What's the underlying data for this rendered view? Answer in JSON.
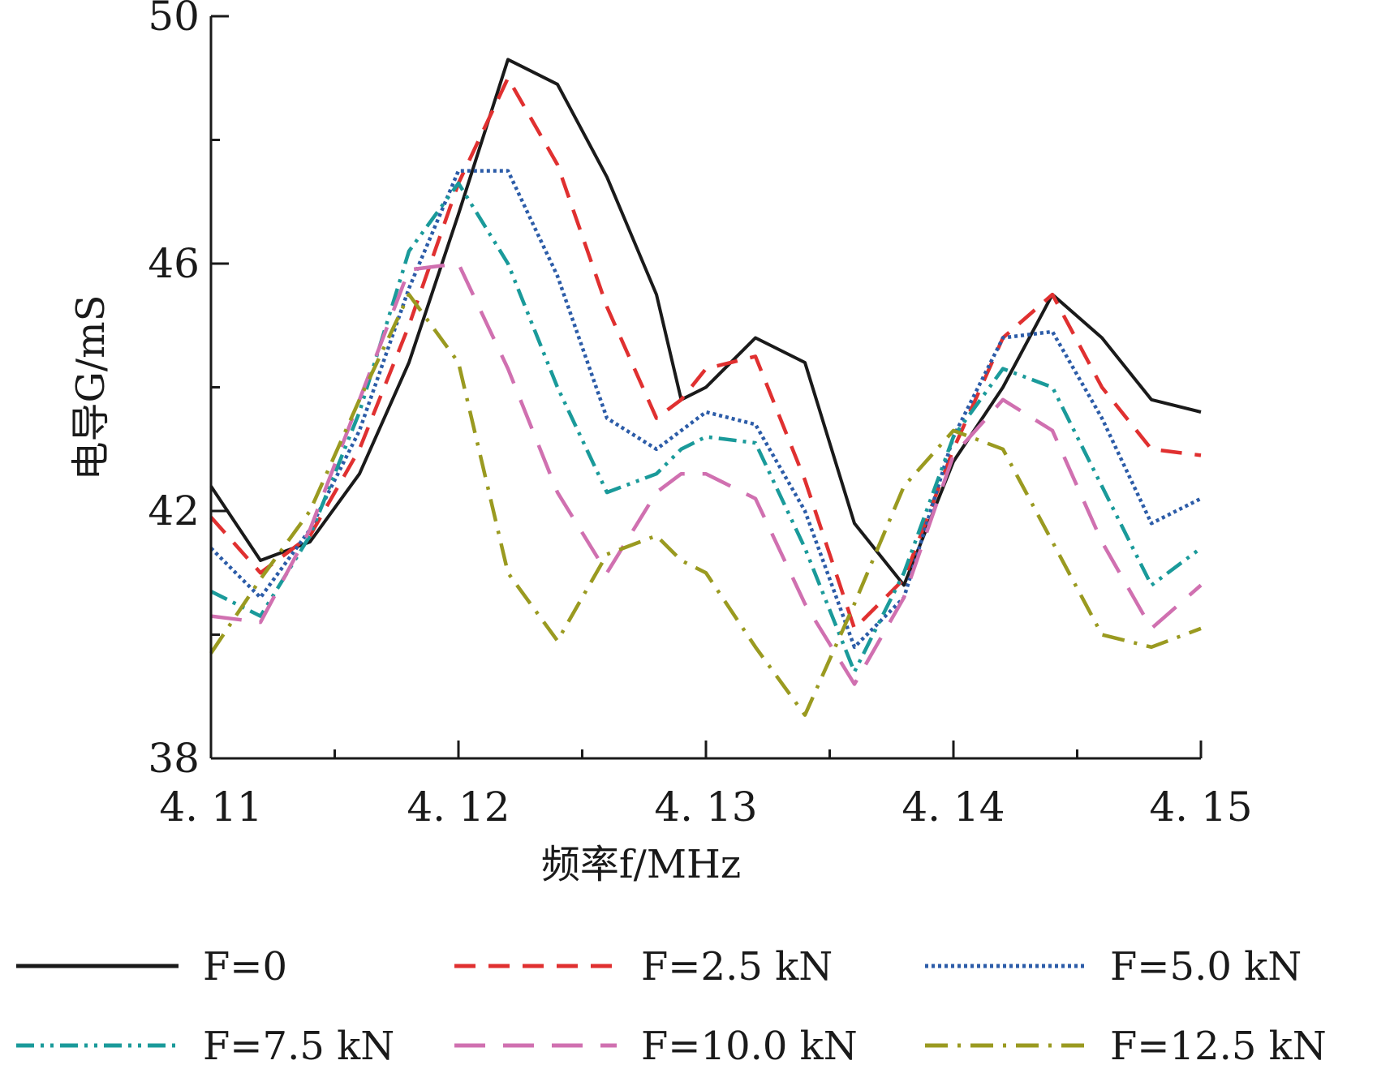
{
  "chart_data": {
    "type": "line",
    "xlabel": "频率f/MHz",
    "ylabel": "电导G/mS",
    "xlim": [
      4.11,
      4.15
    ],
    "ylim": [
      38,
      50
    ],
    "x_ticks": [
      4.11,
      4.12,
      4.13,
      4.14,
      4.15
    ],
    "x_tick_labels": [
      "4. 11",
      "4. 12",
      "4. 13",
      "4. 14",
      "4. 15"
    ],
    "y_ticks": [
      38,
      42,
      46,
      50
    ],
    "y_tick_labels": [
      "38",
      "42",
      "46",
      "50"
    ],
    "legend_position": "bottom",
    "x": [
      4.11,
      4.112,
      4.114,
      4.116,
      4.118,
      4.12,
      4.122,
      4.124,
      4.126,
      4.128,
      4.129,
      4.13,
      4.132,
      4.134,
      4.136,
      4.138,
      4.14,
      4.142,
      4.144,
      4.146,
      4.148,
      4.15
    ],
    "series": [
      {
        "name": "F=0",
        "color": "#1a1a1a",
        "dash": "solid",
        "values": [
          42.4,
          41.2,
          41.5,
          42.6,
          44.4,
          46.8,
          49.3,
          48.9,
          47.4,
          45.5,
          43.8,
          44.0,
          44.8,
          44.4,
          41.8,
          40.8,
          42.8,
          44.0,
          45.5,
          44.8,
          43.8,
          43.6
        ]
      },
      {
        "name": "F=2.5 kN",
        "color": "#e03030",
        "dash": "dashed",
        "values": [
          41.9,
          41.0,
          41.6,
          43.0,
          45.0,
          47.3,
          49.0,
          47.6,
          45.3,
          43.5,
          43.8,
          44.3,
          44.5,
          42.5,
          40.1,
          40.9,
          43.0,
          44.8,
          45.5,
          44.0,
          43.0,
          42.9
        ]
      },
      {
        "name": "F=5.0 kN",
        "color": "#2c5ca8",
        "dash": "dotted",
        "values": [
          41.4,
          40.6,
          41.7,
          43.3,
          45.6,
          47.5,
          47.5,
          45.8,
          43.5,
          43.0,
          43.3,
          43.6,
          43.4,
          42.0,
          39.8,
          40.6,
          43.2,
          44.8,
          44.9,
          43.5,
          41.8,
          42.2
        ]
      },
      {
        "name": "F=7.5 kN",
        "color": "#1a9a9a",
        "dash": "dashdotdot",
        "values": [
          40.7,
          40.3,
          41.6,
          43.6,
          46.2,
          47.3,
          46.0,
          44.0,
          42.3,
          42.6,
          43.0,
          43.2,
          43.1,
          41.4,
          39.4,
          41.0,
          43.2,
          44.3,
          44.0,
          42.4,
          40.8,
          41.4
        ]
      },
      {
        "name": "F=10.0 kN",
        "color": "#d070b0",
        "dash": "longdash",
        "values": [
          40.3,
          40.2,
          41.7,
          43.8,
          45.9,
          46.0,
          44.3,
          42.3,
          41.0,
          42.3,
          42.6,
          42.6,
          42.2,
          40.5,
          39.2,
          40.6,
          42.9,
          43.8,
          43.3,
          41.5,
          40.1,
          40.8
        ]
      },
      {
        "name": "F=12.5 kN",
        "color": "#9a9a20",
        "dash": "dashdot",
        "values": [
          39.7,
          40.9,
          42.0,
          43.8,
          45.5,
          44.4,
          41.0,
          39.9,
          41.3,
          41.6,
          41.2,
          41.0,
          39.8,
          38.7,
          40.5,
          42.4,
          43.3,
          43.0,
          41.5,
          40.0,
          39.8,
          40.1
        ]
      }
    ]
  }
}
